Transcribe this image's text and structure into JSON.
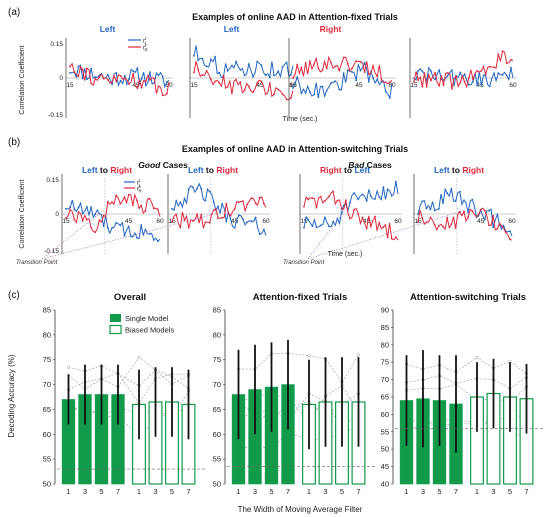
{
  "colors": {
    "blue": "#2166c4",
    "red": "#e0283c",
    "green": "#119a4a",
    "lbl_red": "#e0283c",
    "lbl_blue": "#2166c4"
  },
  "panel_labels": {
    "a": "(a)",
    "b": "(b)",
    "c": "(c)"
  },
  "fixed": {
    "title": "Examples of online AAD in Attention-fixed Trials",
    "ylabel": "Correlation Coefficient",
    "xlabel": "Time (sec.)",
    "legend": {
      "left": "r",
      "right": "r",
      "sub_left": "L",
      "sub_right": "R",
      "sup": "t"
    },
    "yticks": [
      "0.15",
      "0",
      "-0.15"
    ],
    "subplots": [
      {
        "label": "Left",
        "label_color": "blue",
        "xticks": [
          "15",
          "30",
          "45",
          "60"
        ]
      },
      {
        "label": "Left",
        "label_color": "blue",
        "xticks": [
          "15",
          "30",
          "45",
          "60"
        ]
      },
      {
        "label": "Right",
        "label_color": "red",
        "xticks": [
          "15",
          "30",
          "45",
          "60"
        ]
      },
      {
        "label": "",
        "label_color": "blue",
        "xticks": [
          "15",
          "30",
          "45",
          "60"
        ]
      }
    ]
  },
  "switching": {
    "title": "Examples of online AAD in Attention-switching Trials",
    "ylabel": "Correlation Coefficient",
    "xlabel": "Time (sec.)",
    "good_prefix": "Good",
    "good_suffix": " Cases",
    "bad_prefix": "Bad",
    "bad_suffix": " Cases",
    "to_word": "to",
    "transition_label": "Transition Point",
    "yticks": [
      "0.15",
      "0",
      "-0.15"
    ],
    "subplots": [
      {
        "from": "Left",
        "from_color": "blue",
        "to": "Right",
        "to_color": "red",
        "xticks": [
          "15",
          "30",
          "45",
          "60"
        ]
      },
      {
        "from": "Left",
        "from_color": "blue",
        "to": "Right",
        "to_color": "red",
        "xticks": [
          "15",
          "30",
          "45",
          "60"
        ]
      },
      {
        "from": "Right",
        "from_color": "red",
        "to": "Left",
        "to_color": "blue",
        "xticks": [
          "15",
          "30",
          "45",
          "60"
        ]
      },
      {
        "from": "Left",
        "from_color": "blue",
        "to": "Right",
        "to_color": "red",
        "xticks": [
          "15",
          "30",
          "45",
          "60"
        ]
      }
    ]
  },
  "chart_data": {
    "type": "bar",
    "ylabel": "Decoding Accuracy (%)",
    "xlabel": "The Width of Moving Average Filter",
    "legend": {
      "single": "Single Model",
      "biased": "Biased Models"
    },
    "categories": [
      "1",
      "3",
      "5",
      "7"
    ],
    "panels": [
      {
        "title": "Overall",
        "ylim": [
          50,
          85
        ],
        "yticks": [
          "50",
          "55",
          "60",
          "65",
          "70",
          "75",
          "80",
          "85"
        ],
        "chance": 53,
        "single": {
          "values": [
            67,
            68,
            68,
            68
          ],
          "err": [
            5,
            6,
            6,
            6
          ]
        },
        "biased": {
          "values": [
            66,
            66.5,
            66.5,
            66
          ],
          "err": [
            7,
            7,
            7,
            7
          ]
        }
      },
      {
        "title": "Attention-fixed Trials",
        "ylim": [
          50,
          85
        ],
        "yticks": [
          "50",
          "55",
          "60",
          "65",
          "70",
          "75",
          "80",
          "85"
        ],
        "chance": 53.5,
        "single": {
          "values": [
            68,
            69,
            69.5,
            70
          ],
          "err": [
            9,
            9,
            9,
            9
          ]
        },
        "biased": {
          "values": [
            66,
            66.5,
            66.5,
            66.5
          ],
          "err": [
            9,
            9,
            9,
            9
          ]
        }
      },
      {
        "title": "Attention-switching Trials",
        "ylim": [
          40,
          90
        ],
        "yticks": [
          "40",
          "45",
          "50",
          "55",
          "60",
          "65",
          "70",
          "75",
          "80",
          "85",
          "90"
        ],
        "chance": 56,
        "single": {
          "values": [
            64,
            64.5,
            64,
            63
          ],
          "err": [
            13,
            14,
            13,
            14
          ]
        },
        "biased": {
          "values": [
            65,
            66,
            65,
            64.5
          ],
          "err": [
            10,
            10,
            10,
            10
          ]
        }
      }
    ]
  }
}
